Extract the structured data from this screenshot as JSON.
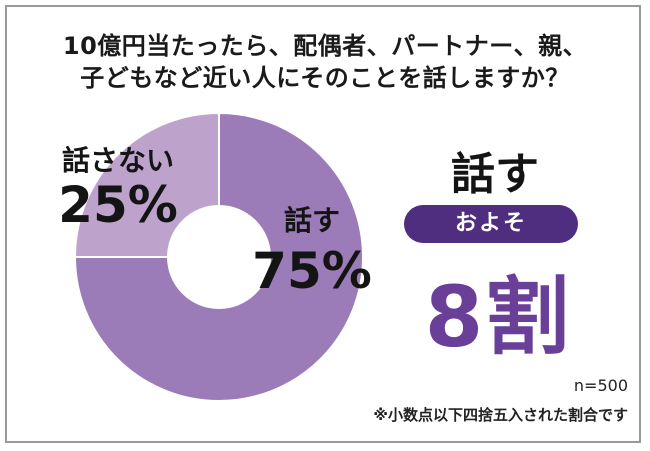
{
  "title": {
    "line1": "10億円当たったら、配偶者、パートナー、親、",
    "line2": "子どもなど近い人にそのことを話しますか？"
  },
  "chart_data": {
    "type": "pie",
    "donut": true,
    "categories": [
      "話す",
      "話さない"
    ],
    "values": [
      75,
      25
    ],
    "unit": "%",
    "colors": [
      "#9b7bb8",
      "#bda3cc"
    ],
    "labels": [
      {
        "name": "話す",
        "value": "75%"
      },
      {
        "name": "話さない",
        "value": "25%"
      }
    ]
  },
  "summary": {
    "heading": "話す",
    "pill": "およそ",
    "big": "8割"
  },
  "notes": {
    "sample": "n=500",
    "rounding": "※小数点以下四捨五入された割合です"
  }
}
